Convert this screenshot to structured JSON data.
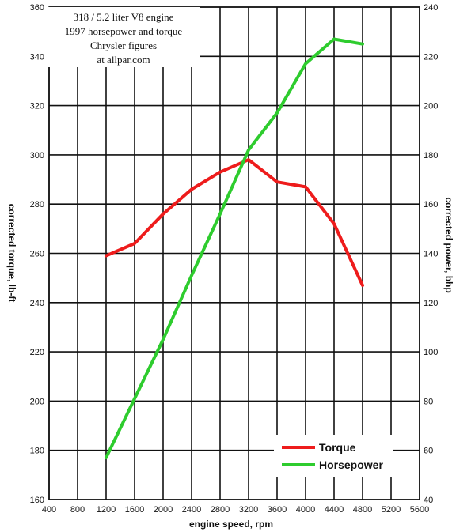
{
  "chart_data": {
    "type": "line",
    "title_lines": [
      "318 / 5.2 liter V8 engine",
      "1997 horsepower and torque",
      "Chrysler figures",
      "at allpar.com"
    ],
    "xlabel": "engine speed, rpm",
    "ylabel_left": "corrected torque, lb-ft",
    "ylabel_right": "corrected power, bhp",
    "xlim": [
      400,
      5600
    ],
    "ylim_left": [
      160,
      360
    ],
    "ylim_right": [
      40,
      240
    ],
    "x_ticks": [
      400,
      800,
      1200,
      1600,
      2000,
      2400,
      2800,
      3200,
      3600,
      4000,
      4400,
      4800,
      5200,
      5600
    ],
    "y_ticks_left": [
      160,
      180,
      200,
      220,
      240,
      260,
      280,
      300,
      320,
      340,
      360
    ],
    "y_ticks_right": [
      40,
      60,
      80,
      100,
      120,
      140,
      160,
      180,
      200,
      220,
      240
    ],
    "grid": true,
    "legend_position": "bottom-right",
    "series": [
      {
        "name": "Torque",
        "axis": "left",
        "color": "#ee1c1c",
        "points": [
          [
            1200,
            259
          ],
          [
            1600,
            264
          ],
          [
            2000,
            276
          ],
          [
            2400,
            286
          ],
          [
            2800,
            293
          ],
          [
            3200,
            298
          ],
          [
            3600,
            289
          ],
          [
            4000,
            287
          ],
          [
            4400,
            272
          ],
          [
            4800,
            247
          ]
        ]
      },
      {
        "name": "Horsepower",
        "axis": "right",
        "color": "#2ecc2e",
        "points": [
          [
            1200,
            57
          ],
          [
            1600,
            81
          ],
          [
            2000,
            105
          ],
          [
            2400,
            131
          ],
          [
            2800,
            156
          ],
          [
            3200,
            182
          ],
          [
            3600,
            197
          ],
          [
            4000,
            217
          ],
          [
            4400,
            227
          ],
          [
            4800,
            225
          ]
        ]
      }
    ]
  }
}
